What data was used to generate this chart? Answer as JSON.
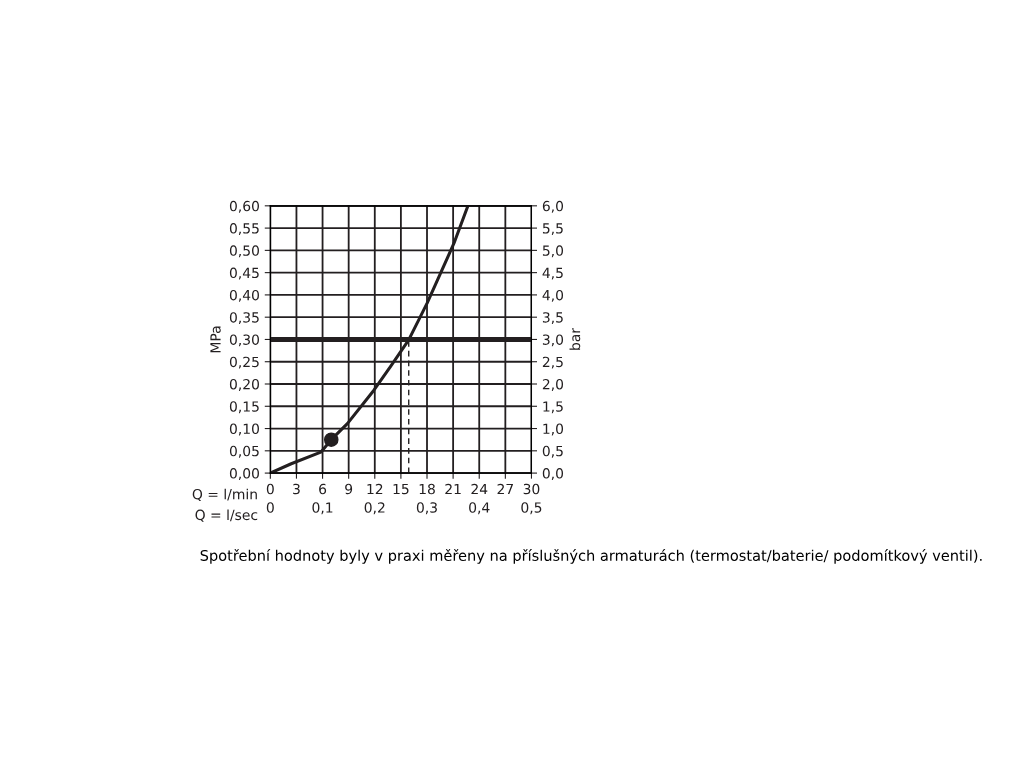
{
  "chart_data": {
    "type": "line",
    "xlabel": "Q = l/min",
    "x2label": "Q = l/sec",
    "ylabel": "MPa",
    "y2label": "bar",
    "series": [
      {
        "color": "#231f20",
        "line_style": "solid",
        "marker": "none",
        "x": [
          0,
          2.4,
          5.8,
          7.0,
          8.85,
          11.9,
          13.8,
          15.9,
          18.0,
          21.1,
          22.7
        ],
        "values": [
          0,
          0.021,
          0.047,
          0.075,
          0.111,
          0.186,
          0.239,
          0.299,
          0.381,
          0.516,
          0.6
        ]
      },
      {
        "color": "#231f20",
        "line_style": "dashed",
        "marker": "none",
        "x": [
          15.9,
          15.9
        ],
        "values": [
          0,
          0.3
        ]
      },
      {
        "type": "scatter",
        "color": "#231f20",
        "marker": "circle",
        "x": [
          7.0
        ],
        "values": [
          0.075
        ]
      }
    ],
    "xlim": [
      0,
      30
    ],
    "xticks": [
      0,
      3,
      6,
      9,
      12,
      15,
      18,
      21,
      24,
      27,
      30
    ],
    "x2lim": [
      0,
      0.5
    ],
    "x2ticks": [
      0,
      {
        "value": 0.1,
        "label": "0,1"
      },
      {
        "value": 0.2,
        "label": "0,2"
      },
      {
        "value": 0.3,
        "label": "0,3"
      },
      {
        "value": 0.4,
        "label": "0,4"
      },
      {
        "value": 0.5,
        "label": "0,5"
      }
    ],
    "ylim": [
      0,
      0.6
    ],
    "yticks": [
      {
        "value": 0,
        "label": "0,00"
      },
      {
        "value": 0.05,
        "label": "0,05"
      },
      {
        "value": 0.1,
        "label": "0,10"
      },
      {
        "value": 0.15,
        "label": "0,15"
      },
      {
        "value": 0.2,
        "label": "0,20"
      },
      {
        "value": 0.25,
        "label": "0,25"
      },
      {
        "value": 0.3,
        "label": "0,30"
      },
      {
        "value": 0.35,
        "label": "0,35"
      },
      {
        "value": 0.4,
        "label": "0,40"
      },
      {
        "value": 0.45,
        "label": "0,45"
      },
      {
        "value": 0.5,
        "label": "0,50"
      },
      {
        "value": 0.55,
        "label": "0,55"
      },
      {
        "value": 0.6,
        "label": "0,60"
      }
    ],
    "y2lim": [
      0,
      6
    ],
    "y2ticks": [
      {
        "value": 0,
        "label": "0,0"
      },
      {
        "value": 0.5,
        "label": "0,5"
      },
      {
        "value": 1,
        "label": "1,0"
      },
      {
        "value": 1.5,
        "label": "1,5"
      },
      {
        "value": 2,
        "label": "2,0"
      },
      {
        "value": 2.5,
        "label": "2,5"
      },
      {
        "value": 3,
        "label": "3,0"
      },
      {
        "value": 3.5,
        "label": "3,5"
      },
      {
        "value": 4,
        "label": "4,0"
      },
      {
        "value": 4.5,
        "label": "4,5"
      },
      {
        "value": 5,
        "label": "5,0"
      },
      {
        "value": 5.5,
        "label": "5,5"
      },
      {
        "value": 6,
        "label": "6,0"
      }
    ],
    "ref_lines": [
      {
        "axis": "y",
        "value": 0.3,
        "color": "#231f20",
        "line_style": "solid"
      }
    ],
    "grid": true,
    "annotations": [
      "Spotřební hodnoty byly v praxi měřeny na příslušných armaturách (termostat/baterie/ podomítkový ventil)."
    ]
  }
}
